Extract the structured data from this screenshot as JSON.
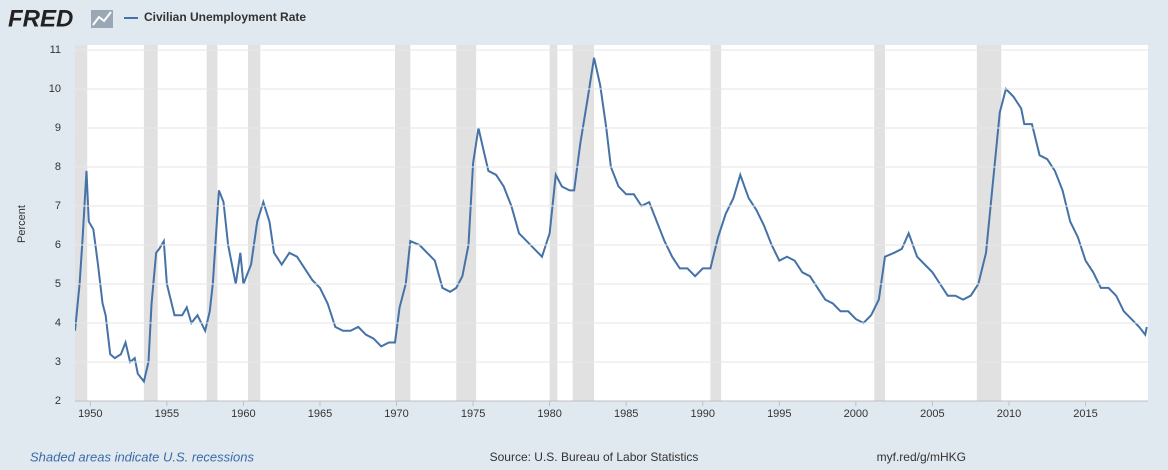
{
  "logo": "FRED",
  "footer": {
    "note": "Shaded areas indicate U.S. recessions",
    "source": "Source: U.S. Bureau of Labor Statistics",
    "link": "myf.red/g/mHKG"
  },
  "chart_data": {
    "type": "line",
    "y_label": "Percent",
    "x": [
      1949.0,
      1949.3,
      1949.5,
      1949.75,
      1949.9,
      1950.2,
      1950.5,
      1950.8,
      1951.0,
      1951.3,
      1951.6,
      1952.0,
      1952.3,
      1952.6,
      1952.9,
      1953.1,
      1953.5,
      1953.8,
      1954.0,
      1954.3,
      1954.5,
      1954.8,
      1955.0,
      1955.5,
      1956.0,
      1956.3,
      1956.6,
      1957.0,
      1957.5,
      1957.8,
      1958.0,
      1958.4,
      1958.7,
      1959.0,
      1959.5,
      1959.8,
      1960.0,
      1960.5,
      1960.9,
      1961.3,
      1961.7,
      1962.0,
      1962.5,
      1963.0,
      1963.5,
      1964.0,
      1964.5,
      1965.0,
      1965.5,
      1966.0,
      1966.5,
      1967.0,
      1967.5,
      1968.0,
      1968.5,
      1969.0,
      1969.5,
      1969.9,
      1970.2,
      1970.6,
      1970.9,
      1971.5,
      1972.0,
      1972.5,
      1973.0,
      1973.5,
      1973.9,
      1974.3,
      1974.7,
      1975.0,
      1975.35,
      1975.7,
      1976.0,
      1976.5,
      1977.0,
      1977.5,
      1978.0,
      1978.5,
      1979.0,
      1979.5,
      1980.0,
      1980.4,
      1980.8,
      1981.3,
      1981.6,
      1982.0,
      1982.5,
      1982.9,
      1983.3,
      1983.7,
      1984.0,
      1984.5,
      1985.0,
      1985.5,
      1986.0,
      1986.5,
      1987.0,
      1987.5,
      1988.0,
      1988.5,
      1989.0,
      1989.5,
      1990.0,
      1990.5,
      1991.0,
      1991.5,
      1992.0,
      1992.45,
      1993.0,
      1993.5,
      1994.0,
      1994.5,
      1995.0,
      1995.5,
      1996.0,
      1996.5,
      1997.0,
      1997.5,
      1998.0,
      1998.5,
      1999.0,
      1999.5,
      2000.0,
      2000.5,
      2001.0,
      2001.5,
      2001.9,
      2002.5,
      2003.0,
      2003.45,
      2004.0,
      2004.5,
      2005.0,
      2005.5,
      2006.0,
      2006.5,
      2007.0,
      2007.5,
      2008.0,
      2008.5,
      2009.0,
      2009.4,
      2009.8,
      2010.3,
      2010.8,
      2011.0,
      2011.5,
      2012.0,
      2012.5,
      2013.0,
      2013.5,
      2014.0,
      2014.5,
      2015.0,
      2015.5,
      2016.0,
      2016.5,
      2017.0,
      2017.5,
      2018.0,
      2018.5,
      2018.9,
      2019.0
    ],
    "series": [
      {
        "name": "Civilian Unemployment Rate",
        "color": "#4572a7",
        "values": [
          3.8,
          5.0,
          6.2,
          7.9,
          6.6,
          6.4,
          5.5,
          4.5,
          4.2,
          3.2,
          3.1,
          3.2,
          3.5,
          3.0,
          3.1,
          2.7,
          2.5,
          3.0,
          4.5,
          5.8,
          5.9,
          6.1,
          5.0,
          4.2,
          4.2,
          4.4,
          4.0,
          4.2,
          3.8,
          4.3,
          5.0,
          7.4,
          7.1,
          6.0,
          5.0,
          5.8,
          5.0,
          5.5,
          6.6,
          7.1,
          6.6,
          5.8,
          5.5,
          5.8,
          5.7,
          5.4,
          5.1,
          4.9,
          4.5,
          3.9,
          3.8,
          3.8,
          3.9,
          3.7,
          3.6,
          3.4,
          3.5,
          3.5,
          4.4,
          5.0,
          6.1,
          6.0,
          5.8,
          5.6,
          4.9,
          4.8,
          4.9,
          5.2,
          6.0,
          8.1,
          9.0,
          8.4,
          7.9,
          7.8,
          7.5,
          7.0,
          6.3,
          6.1,
          5.9,
          5.7,
          6.3,
          7.8,
          7.5,
          7.4,
          7.4,
          8.6,
          9.8,
          10.8,
          10.1,
          9.0,
          8.0,
          7.5,
          7.3,
          7.3,
          7.0,
          7.1,
          6.6,
          6.1,
          5.7,
          5.4,
          5.4,
          5.2,
          5.4,
          5.4,
          6.2,
          6.8,
          7.2,
          7.8,
          7.2,
          6.9,
          6.5,
          6.0,
          5.6,
          5.7,
          5.6,
          5.3,
          5.2,
          4.9,
          4.6,
          4.5,
          4.3,
          4.3,
          4.1,
          4.0,
          4.2,
          4.6,
          5.7,
          5.8,
          5.9,
          6.3,
          5.7,
          5.5,
          5.3,
          5.0,
          4.7,
          4.7,
          4.6,
          4.7,
          5.0,
          5.8,
          7.8,
          9.4,
          10.0,
          9.8,
          9.5,
          9.1,
          9.1,
          8.3,
          8.2,
          7.9,
          7.4,
          6.6,
          6.2,
          5.6,
          5.3,
          4.9,
          4.9,
          4.7,
          4.3,
          4.1,
          3.9,
          3.7,
          3.9
        ]
      }
    ],
    "recessions": [
      [
        1948.9,
        1949.8
      ],
      [
        1953.5,
        1954.4
      ],
      [
        1957.6,
        1958.3
      ],
      [
        1960.3,
        1961.1
      ],
      [
        1969.9,
        1970.9
      ],
      [
        1973.9,
        1975.2
      ],
      [
        1980.0,
        1980.5
      ],
      [
        1981.5,
        1982.9
      ],
      [
        1990.5,
        1991.2
      ],
      [
        2001.2,
        2001.9
      ],
      [
        2007.9,
        2009.5
      ]
    ],
    "recession_color": "#e1e1e1",
    "xlim": [
      1949.0,
      2019.08
    ],
    "ylim": [
      2,
      11
    ],
    "xticks": [
      1950,
      1955,
      1960,
      1965,
      1970,
      1975,
      1980,
      1985,
      1990,
      1995,
      2000,
      2005,
      2010,
      2015
    ],
    "yticks": [
      2,
      3,
      4,
      5,
      6,
      7,
      8,
      9,
      10,
      11
    ],
    "grid": true
  }
}
